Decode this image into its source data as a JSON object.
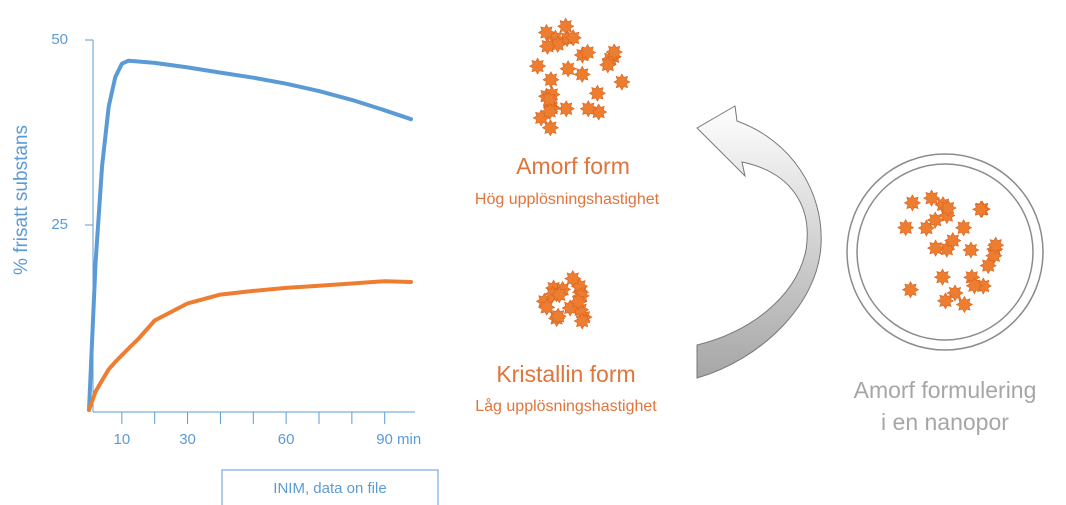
{
  "chart_data": {
    "type": "line",
    "y_label": "% frisatt substans",
    "x": [
      0,
      2,
      4,
      6,
      8,
      10,
      12,
      15,
      20,
      30,
      40,
      50,
      60,
      70,
      80,
      90,
      98
    ],
    "series": [
      {
        "color": "#5b9bd5",
        "values": [
          0,
          20,
          33,
          41,
          45,
          46.8,
          47.2,
          47.1,
          46.9,
          46.3,
          45.6,
          44.9,
          44.1,
          43.1,
          41.9,
          40.5,
          39.3
        ]
      },
      {
        "color": "#ed7d31",
        "values": [
          0,
          2.5,
          4,
          5.5,
          6.5,
          7.4,
          8.3,
          9.6,
          12.1,
          14.4,
          15.6,
          16.1,
          16.5,
          16.8,
          17.1,
          17.4,
          17.3
        ]
      }
    ],
    "xlim": [
      0,
      98
    ],
    "ylim": [
      0,
      50
    ],
    "xticks": [
      10,
      30,
      60,
      {
        "value": 90,
        "label": "90 min"
      }
    ],
    "x_minor_ticks": [
      20,
      40,
      50,
      70,
      80
    ],
    "yticks": [
      25,
      50
    ],
    "source": "INIM, data on file",
    "annotations": [
      "Amorf form",
      "Hög upplösningshastighet",
      "Kristallin form",
      "Låg upplösningshastighet",
      "Amorf formulering",
      "i en nanopor"
    ]
  }
}
